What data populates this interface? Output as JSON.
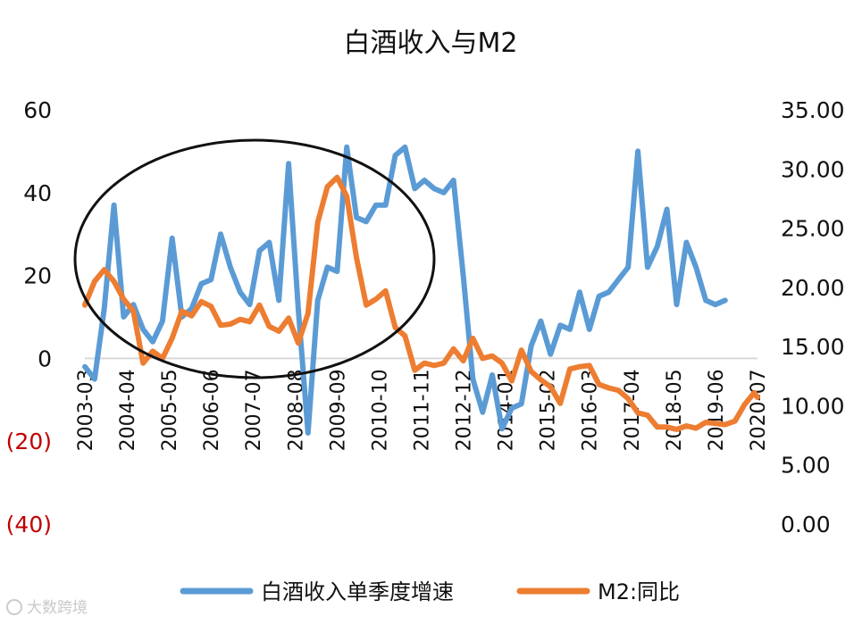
{
  "chart_data": {
    "type": "line",
    "title": "白酒收入与M2",
    "xlabel": "",
    "ylabel": "",
    "left_axis": {
      "ylim": [
        -40,
        60
      ],
      "ticks": [
        {
          "value": 60,
          "label": "60"
        },
        {
          "value": 40,
          "label": "40"
        },
        {
          "value": 20,
          "label": "20"
        },
        {
          "value": 0,
          "label": "0"
        },
        {
          "value": -20,
          "label": "(20)"
        },
        {
          "value": -40,
          "label": "(40)"
        }
      ],
      "negative_color": "#c00000"
    },
    "right_axis": {
      "ylim": [
        0,
        35
      ],
      "ticks": [
        {
          "value": 35,
          "label": "35.00"
        },
        {
          "value": 30,
          "label": "30.00"
        },
        {
          "value": 25,
          "label": "25.00"
        },
        {
          "value": 20,
          "label": "20.00"
        },
        {
          "value": 15,
          "label": "15.00"
        },
        {
          "value": 10,
          "label": "10.00"
        },
        {
          "value": 5,
          "label": "5.00"
        },
        {
          "value": 0,
          "label": "0.00"
        }
      ]
    },
    "x_tick_labels": [
      "2003-03",
      "2004-04",
      "2005-05",
      "2006-06",
      "2007-07",
      "2008-08",
      "2009-09",
      "2010-10",
      "2011-11",
      "2012-12",
      "2014-01",
      "2015-02",
      "2016-03",
      "2017-04",
      "2018-05",
      "2019-06",
      "2020-07"
    ],
    "x_range": [
      "2003-03",
      "2020-07"
    ],
    "series": [
      {
        "name": "白酒收入单季度增速",
        "axis": "left",
        "color": "#5b9bd5",
        "points": [
          [
            "2003-03",
            -2
          ],
          [
            "2003-06",
            -5
          ],
          [
            "2003-09",
            12
          ],
          [
            "2003-12",
            37
          ],
          [
            "2004-03",
            10
          ],
          [
            "2004-06",
            13
          ],
          [
            "2004-09",
            7
          ],
          [
            "2004-12",
            4
          ],
          [
            "2005-03",
            9
          ],
          [
            "2005-06",
            29
          ],
          [
            "2005-09",
            10
          ],
          [
            "2005-12",
            12
          ],
          [
            "2006-03",
            18
          ],
          [
            "2006-06",
            19
          ],
          [
            "2006-09",
            30
          ],
          [
            "2006-12",
            22
          ],
          [
            "2007-03",
            16
          ],
          [
            "2007-06",
            13
          ],
          [
            "2007-09",
            26
          ],
          [
            "2007-12",
            28
          ],
          [
            "2008-03",
            14
          ],
          [
            "2008-06",
            47
          ],
          [
            "2008-09",
            12
          ],
          [
            "2008-12",
            -18
          ],
          [
            "2009-03",
            14
          ],
          [
            "2009-06",
            22
          ],
          [
            "2009-09",
            21
          ],
          [
            "2009-12",
            51
          ],
          [
            "2010-03",
            34
          ],
          [
            "2010-06",
            33
          ],
          [
            "2010-09",
            37
          ],
          [
            "2010-12",
            37
          ],
          [
            "2011-03",
            49
          ],
          [
            "2011-06",
            51
          ],
          [
            "2011-09",
            41
          ],
          [
            "2011-12",
            43
          ],
          [
            "2012-03",
            41
          ],
          [
            "2012-06",
            40
          ],
          [
            "2012-09",
            43
          ],
          [
            "2012-12",
            20
          ],
          [
            "2013-03",
            -5
          ],
          [
            "2013-06",
            -13
          ],
          [
            "2013-09",
            -4
          ],
          [
            "2013-12",
            -17
          ],
          [
            "2014-03",
            -12
          ],
          [
            "2014-06",
            -11
          ],
          [
            "2014-09",
            3
          ],
          [
            "2014-12",
            9
          ],
          [
            "2015-03",
            1
          ],
          [
            "2015-06",
            8
          ],
          [
            "2015-09",
            7
          ],
          [
            "2015-12",
            16
          ],
          [
            "2016-03",
            7
          ],
          [
            "2016-06",
            15
          ],
          [
            "2016-09",
            16
          ],
          [
            "2016-12",
            19
          ],
          [
            "2017-03",
            22
          ],
          [
            "2017-06",
            50
          ],
          [
            "2017-09",
            22
          ],
          [
            "2017-12",
            27
          ],
          [
            "2018-03",
            36
          ],
          [
            "2018-06",
            13
          ],
          [
            "2018-09",
            28
          ],
          [
            "2018-12",
            22
          ],
          [
            "2019-03",
            14
          ],
          [
            "2019-06",
            13
          ],
          [
            "2019-09",
            14
          ]
        ]
      },
      {
        "name": "M2:同比",
        "axis": "right",
        "color": "#ed7d31",
        "points": [
          [
            "2003-03",
            18.5
          ],
          [
            "2003-06",
            20.5
          ],
          [
            "2003-09",
            21.5
          ],
          [
            "2003-12",
            20.5
          ],
          [
            "2004-03",
            19.0
          ],
          [
            "2004-06",
            18.0
          ],
          [
            "2004-09",
            13.6
          ],
          [
            "2004-12",
            14.6
          ],
          [
            "2005-03",
            14.0
          ],
          [
            "2005-06",
            15.7
          ],
          [
            "2005-09",
            18.0
          ],
          [
            "2005-12",
            17.6
          ],
          [
            "2006-03",
            18.8
          ],
          [
            "2006-06",
            18.4
          ],
          [
            "2006-09",
            16.8
          ],
          [
            "2006-12",
            16.9
          ],
          [
            "2007-03",
            17.3
          ],
          [
            "2007-06",
            17.1
          ],
          [
            "2007-09",
            18.5
          ],
          [
            "2007-12",
            16.7
          ],
          [
            "2008-03",
            16.3
          ],
          [
            "2008-06",
            17.4
          ],
          [
            "2008-09",
            15.3
          ],
          [
            "2008-12",
            17.8
          ],
          [
            "2009-03",
            25.5
          ],
          [
            "2009-06",
            28.5
          ],
          [
            "2009-09",
            29.3
          ],
          [
            "2009-12",
            27.7
          ],
          [
            "2010-03",
            22.5
          ],
          [
            "2010-06",
            18.5
          ],
          [
            "2010-09",
            19.0
          ],
          [
            "2010-12",
            19.7
          ],
          [
            "2011-03",
            16.6
          ],
          [
            "2011-06",
            15.9
          ],
          [
            "2011-09",
            13.0
          ],
          [
            "2011-12",
            13.6
          ],
          [
            "2012-03",
            13.4
          ],
          [
            "2012-06",
            13.6
          ],
          [
            "2012-09",
            14.8
          ],
          [
            "2012-12",
            13.8
          ],
          [
            "2013-03",
            15.7
          ],
          [
            "2013-06",
            14.0
          ],
          [
            "2013-09",
            14.2
          ],
          [
            "2013-12",
            13.6
          ],
          [
            "2014-03",
            12.1
          ],
          [
            "2014-06",
            14.7
          ],
          [
            "2014-09",
            12.9
          ],
          [
            "2014-12",
            12.2
          ],
          [
            "2015-03",
            11.6
          ],
          [
            "2015-06",
            10.2
          ],
          [
            "2015-09",
            13.1
          ],
          [
            "2015-12",
            13.3
          ],
          [
            "2016-03",
            13.4
          ],
          [
            "2016-06",
            11.8
          ],
          [
            "2016-09",
            11.5
          ],
          [
            "2016-12",
            11.3
          ],
          [
            "2017-03",
            10.6
          ],
          [
            "2017-06",
            9.4
          ],
          [
            "2017-09",
            9.2
          ],
          [
            "2017-12",
            8.2
          ],
          [
            "2018-03",
            8.2
          ],
          [
            "2018-06",
            8.0
          ],
          [
            "2018-09",
            8.3
          ],
          [
            "2018-12",
            8.1
          ],
          [
            "2019-03",
            8.6
          ],
          [
            "2019-06",
            8.5
          ],
          [
            "2019-09",
            8.4
          ],
          [
            "2019-12",
            8.7
          ],
          [
            "2020-03",
            10.1
          ],
          [
            "2020-06",
            11.1
          ],
          [
            "2020-07",
            10.7
          ]
        ]
      }
    ],
    "legend_position": "bottom",
    "grid": false,
    "annotations": [
      {
        "type": "ellipse",
        "note": "black outline highlighting 2003-2011 co-movement"
      }
    ]
  },
  "watermark": {
    "text": "大数跨境"
  }
}
